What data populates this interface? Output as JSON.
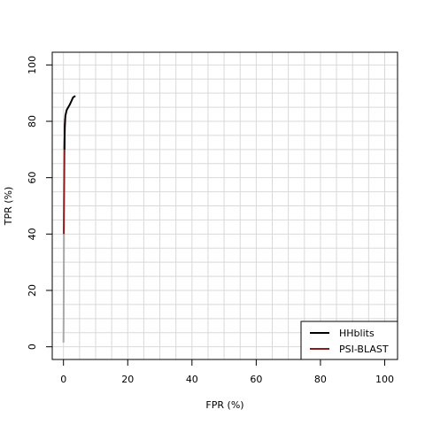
{
  "chart_data": {
    "type": "line",
    "title": "",
    "xlabel": "FPR (%)",
    "ylabel": "TPR (%)",
    "xlim": [
      -3.5,
      104
    ],
    "ylim": [
      -4.5,
      104.5
    ],
    "x_ticks": [
      "0",
      "20",
      "40",
      "60",
      "80",
      "100"
    ],
    "y_ticks": [
      "0",
      "20",
      "40",
      "60",
      "80",
      "100"
    ],
    "grid": true,
    "grid_step": 5,
    "legend_position": "bottom-right",
    "series": [
      {
        "name": "HHblits",
        "color": "#000000",
        "points": [
          [
            0.3,
            70
          ],
          [
            0.4,
            78
          ],
          [
            0.6,
            82
          ],
          [
            1.0,
            84
          ],
          [
            2.0,
            86
          ],
          [
            3.0,
            88.5
          ],
          [
            3.7,
            89
          ]
        ]
      },
      {
        "name": "PSI-BLAST",
        "color": "#8b1a1a",
        "points": [
          [
            0.1,
            40
          ],
          [
            0.2,
            55
          ],
          [
            0.3,
            70
          ],
          [
            0.4,
            78
          ],
          [
            0.5,
            81
          ]
        ]
      },
      {
        "name": "",
        "color": "#a8a8a8",
        "points": [
          [
            0.0,
            1.5
          ],
          [
            0.05,
            10
          ],
          [
            0.1,
            25
          ],
          [
            0.15,
            40
          ]
        ]
      }
    ]
  }
}
